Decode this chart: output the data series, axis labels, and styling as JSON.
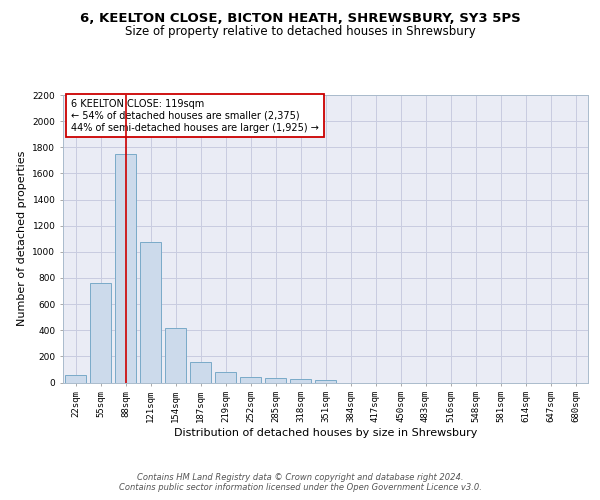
{
  "title_line1": "6, KEELTON CLOSE, BICTON HEATH, SHREWSBURY, SY3 5PS",
  "title_line2": "Size of property relative to detached houses in Shrewsbury",
  "xlabel": "Distribution of detached houses by size in Shrewsbury",
  "ylabel": "Number of detached properties",
  "bin_labels": [
    "22sqm",
    "55sqm",
    "88sqm",
    "121sqm",
    "154sqm",
    "187sqm",
    "219sqm",
    "252sqm",
    "285sqm",
    "318sqm",
    "351sqm",
    "384sqm",
    "417sqm",
    "450sqm",
    "483sqm",
    "516sqm",
    "548sqm",
    "581sqm",
    "614sqm",
    "647sqm",
    "680sqm"
  ],
  "bar_values": [
    55,
    760,
    1750,
    1075,
    420,
    160,
    80,
    45,
    35,
    28,
    20,
    0,
    0,
    0,
    0,
    0,
    0,
    0,
    0,
    0,
    0
  ],
  "bar_color": "#ccdaeb",
  "bar_edge_color": "#7aaac8",
  "grid_color": "#c8cce0",
  "background_color": "#eaecf5",
  "property_bin_index": 2,
  "vline_color": "#cc0000",
  "annotation_text": "6 KEELTON CLOSE: 119sqm\n← 54% of detached houses are smaller (2,375)\n44% of semi-detached houses are larger (1,925) →",
  "annotation_box_color": "#ffffff",
  "annotation_box_edge": "#cc0000",
  "ylim": [
    0,
    2200
  ],
  "yticks": [
    0,
    200,
    400,
    600,
    800,
    1000,
    1200,
    1400,
    1600,
    1800,
    2000,
    2200
  ],
  "footer_text": "Contains HM Land Registry data © Crown copyright and database right 2024.\nContains public sector information licensed under the Open Government Licence v3.0.",
  "title_fontsize": 9.5,
  "subtitle_fontsize": 8.5,
  "tick_fontsize": 6.5,
  "ylabel_fontsize": 8,
  "xlabel_fontsize": 8,
  "annotation_fontsize": 7,
  "footer_fontsize": 6
}
